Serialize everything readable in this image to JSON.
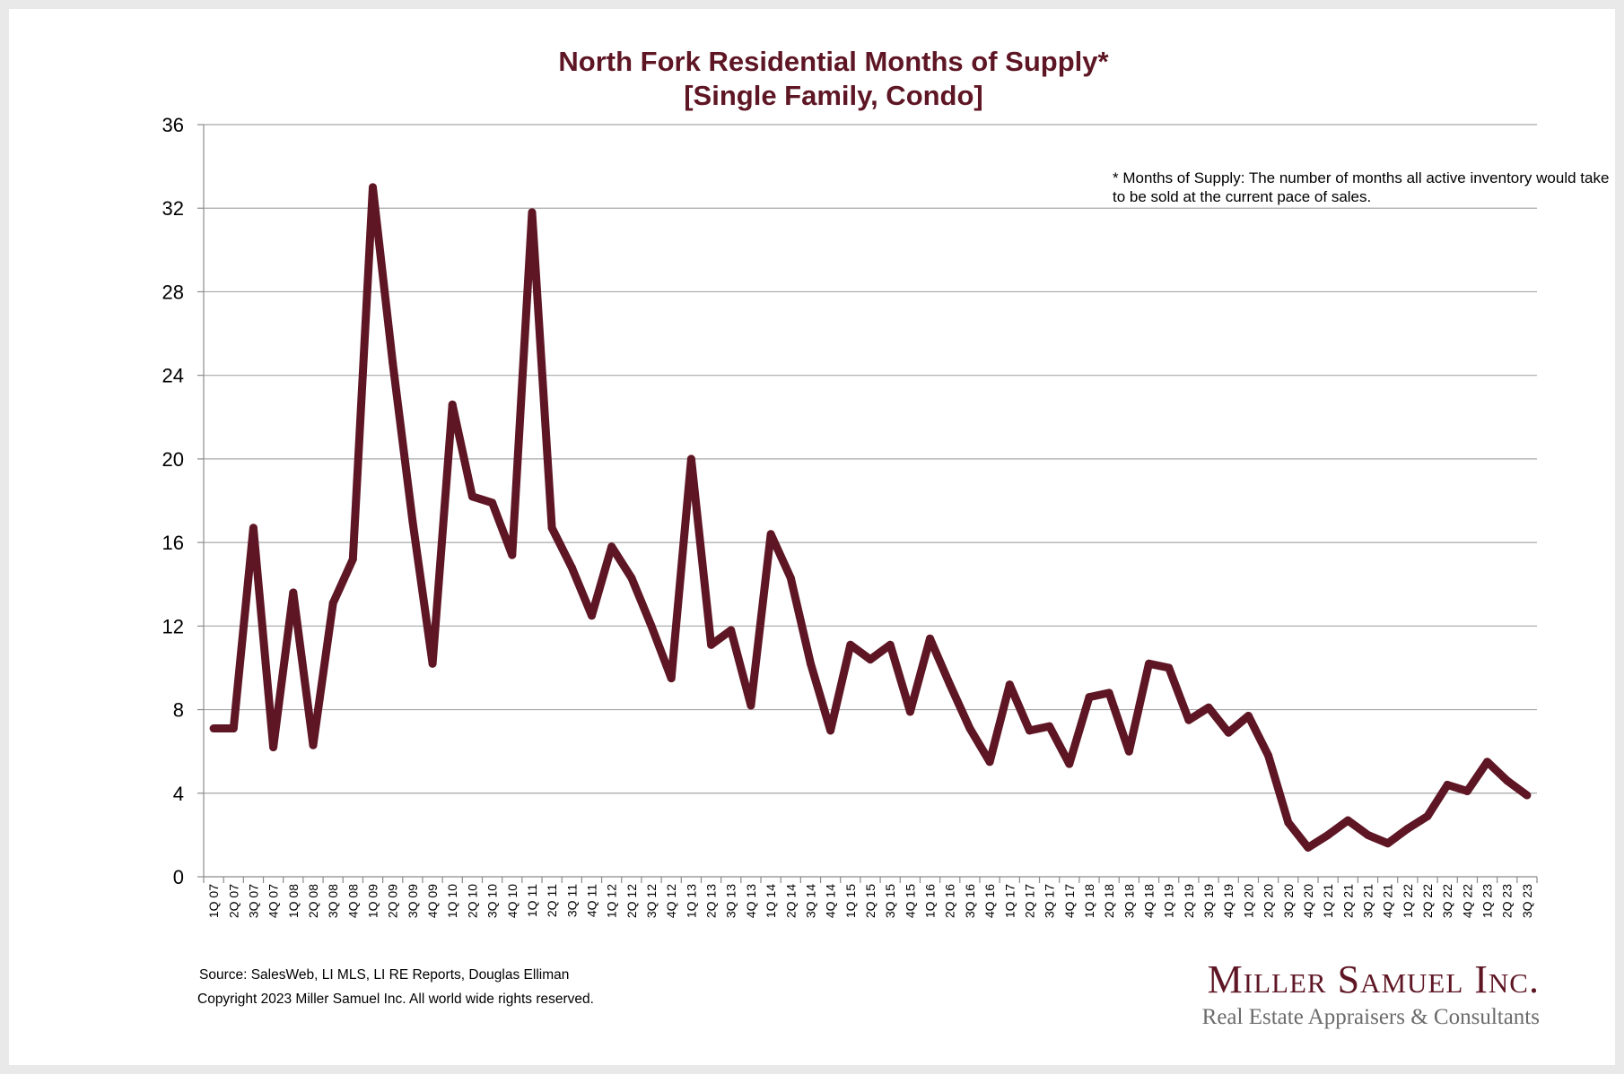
{
  "chart_data": {
    "type": "line",
    "title": "North Fork Residential Months of Supply*",
    "subtitle": "[Single Family, Condo]",
    "note": "* Months of Supply: The number of months all active inventory would take to be sold at the current pace of sales.",
    "ylim": [
      0,
      36
    ],
    "yticks": [
      0,
      4,
      8,
      12,
      16,
      20,
      24,
      28,
      32,
      36
    ],
    "grid": true,
    "legend": "none",
    "line_color": "#5e1624",
    "categories": [
      "1Q 07",
      "2Q 07",
      "3Q 07",
      "4Q 07",
      "1Q 08",
      "2Q 08",
      "3Q 08",
      "4Q 08",
      "1Q 09",
      "2Q 09",
      "3Q 09",
      "4Q 09",
      "1Q 10",
      "2Q 10",
      "3Q 10",
      "4Q 10",
      "1Q 11",
      "2Q 11",
      "3Q 11",
      "4Q 11",
      "1Q 12",
      "2Q 12",
      "3Q 12",
      "4Q 12",
      "1Q 13",
      "2Q 13",
      "3Q 13",
      "4Q 13",
      "1Q 14",
      "2Q 14",
      "3Q 14",
      "4Q 14",
      "1Q 15",
      "2Q 15",
      "3Q 15",
      "4Q 15",
      "1Q 16",
      "2Q 16",
      "3Q 16",
      "4Q 16",
      "1Q 17",
      "2Q 17",
      "3Q 17",
      "4Q 17",
      "1Q 18",
      "2Q 18",
      "3Q 18",
      "4Q 18",
      "1Q 19",
      "2Q 19",
      "3Q 19",
      "4Q 19",
      "1Q 20",
      "2Q 20",
      "3Q 20",
      "4Q 20",
      "1Q 21",
      "2Q 21",
      "3Q 21",
      "4Q 21",
      "1Q 22",
      "2Q 22",
      "3Q 22",
      "4Q 22",
      "1Q 23",
      "2Q 23",
      "3Q 23"
    ],
    "values": [
      7.1,
      7.1,
      16.7,
      6.2,
      13.6,
      6.3,
      13.1,
      15.2,
      33.0,
      24.6,
      17.0,
      10.2,
      22.6,
      18.2,
      17.9,
      15.4,
      31.8,
      16.7,
      14.8,
      12.5,
      15.8,
      14.3,
      12.0,
      9.5,
      20.0,
      11.1,
      11.8,
      8.2,
      16.4,
      14.3,
      10.2,
      7.0,
      11.1,
      10.4,
      11.1,
      7.9,
      11.4,
      9.2,
      7.1,
      5.5,
      9.2,
      7.0,
      7.2,
      5.4,
      8.6,
      8.8,
      6.0,
      10.2,
      10.0,
      7.5,
      8.1,
      6.9,
      7.7,
      5.8,
      2.6,
      1.4,
      2.0,
      2.7,
      2.0,
      1.6,
      2.3,
      2.9,
      4.4,
      4.1,
      5.5,
      4.6,
      3.9
    ]
  },
  "footer": {
    "source": "Source: SalesWeb, LI MLS, LI RE Reports, Douglas Elliman",
    "copyright": "Copyright 2023 Miller Samuel Inc.  All world wide rights reserved."
  },
  "logo": {
    "name": "Miller Samuel Inc.",
    "tagline": "Real Estate Appraisers & Consultants"
  }
}
